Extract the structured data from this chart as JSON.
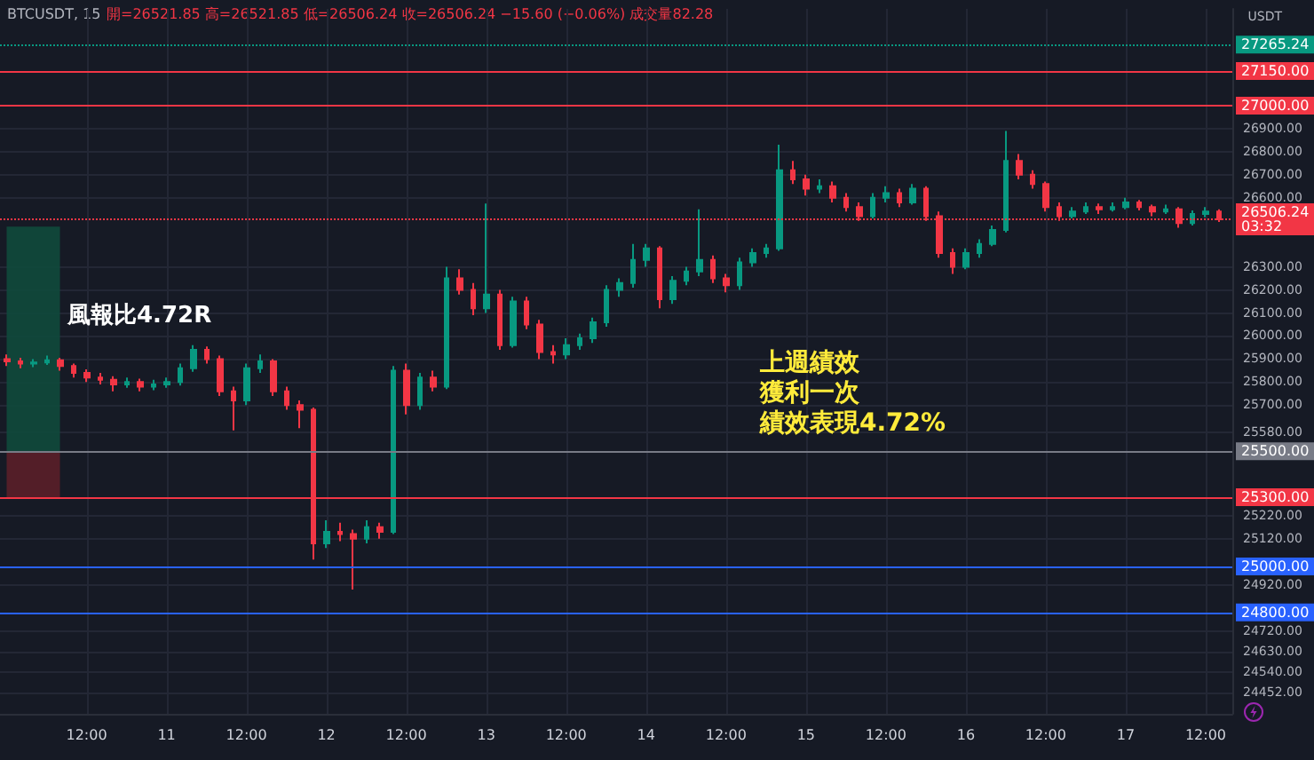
{
  "chart_data": {
    "type": "candlestick",
    "title": "BTCUSDT, 15",
    "subtitle": "開=26521.85 高=26521.85 低=26506.24 收=26506.24 −15.60 (−0.06%) 成交量82.28",
    "ylabel": "USDT",
    "annotations": [
      "風報比4.72R",
      "上週績效",
      "獲利一次",
      "績效表現4.72%"
    ],
    "x": [
      "--09-10T00:00",
      "--09-10T02:00",
      "--09-10T04:00",
      "--09-10T06:00",
      "--09-10T08:00",
      "--09-10T10:00",
      "--09-10T12:00",
      "--09-10T14:00",
      "--09-10T16:00",
      "--09-10T18:00",
      "--09-10T20:00",
      "--09-10T22:00",
      "--09-11T00:00",
      "--09-11T02:00",
      "--09-11T04:00",
      "--09-11T06:00",
      "--09-11T08:00",
      "--09-11T10:00",
      "--09-11T12:00",
      "--09-11T14:00",
      "--09-11T16:00",
      "--09-11T18:00",
      "--09-11T20:00",
      "--09-11T22:00",
      "--09-12T00:00",
      "--09-12T02:00",
      "--09-12T04:00",
      "--09-12T06:00",
      "--09-12T08:00",
      "--09-12T10:00",
      "--09-12T12:00",
      "--09-12T14:00",
      "--09-12T16:00",
      "--09-12T18:00",
      "--09-12T20:00",
      "--09-12T22:00",
      "--09-13T00:00",
      "--09-13T02:00",
      "--09-13T04:00",
      "--09-13T06:00",
      "--09-13T08:00",
      "--09-13T10:00",
      "--09-13T12:00",
      "--09-13T14:00",
      "--09-13T16:00",
      "--09-13T18:00",
      "--09-13T20:00",
      "--09-13T22:00",
      "--09-14T00:00",
      "--09-14T02:00",
      "--09-14T04:00",
      "--09-14T06:00",
      "--09-14T08:00",
      "--09-14T10:00",
      "--09-14T12:00",
      "--09-14T14:00",
      "--09-14T16:00",
      "--09-14T18:00",
      "--09-14T20:00",
      "--09-14T22:00",
      "--09-15T00:00",
      "--09-15T02:00",
      "--09-15T04:00",
      "--09-15T06:00",
      "--09-15T08:00",
      "--09-15T10:00",
      "--09-15T12:00",
      "--09-15T14:00",
      "--09-15T16:00",
      "--09-15T18:00",
      "--09-15T20:00",
      "--09-15T22:00",
      "--09-16T00:00",
      "--09-16T02:00",
      "--09-16T04:00",
      "--09-16T06:00",
      "--09-16T08:00",
      "--09-16T10:00",
      "--09-16T12:00",
      "--09-16T14:00",
      "--09-16T16:00",
      "--09-16T18:00",
      "--09-16T20:00",
      "--09-16T22:00",
      "--09-17T00:00",
      "--09-17T02:00",
      "--09-17T04:00",
      "--09-17T06:00",
      "--09-17T08:00",
      "--09-17T10:00",
      "--09-17T12:00",
      "--09-17T14:00"
    ],
    "ohlc": [
      [
        25900,
        25920,
        25870,
        25890
      ],
      [
        25890,
        25905,
        25860,
        25880
      ],
      [
        25880,
        25900,
        25865,
        25885
      ],
      [
        25885,
        25915,
        25875,
        25895
      ],
      [
        25895,
        25905,
        25850,
        25870
      ],
      [
        25870,
        25880,
        25820,
        25840
      ],
      [
        25840,
        25855,
        25800,
        25820
      ],
      [
        25820,
        25840,
        25790,
        25810
      ],
      [
        25810,
        25825,
        25760,
        25790
      ],
      [
        25790,
        25820,
        25775,
        25800
      ],
      [
        25800,
        25815,
        25760,
        25780
      ],
      [
        25780,
        25810,
        25765,
        25790
      ],
      [
        25790,
        25820,
        25775,
        25800
      ],
      [
        25800,
        25880,
        25785,
        25860
      ],
      [
        25860,
        25960,
        25845,
        25940
      ],
      [
        25940,
        25955,
        25880,
        25900
      ],
      [
        25900,
        25915,
        25740,
        25760
      ],
      [
        25760,
        25780,
        25590,
        25720
      ],
      [
        25720,
        25880,
        25700,
        25860
      ],
      [
        25860,
        25920,
        25840,
        25890
      ],
      [
        25890,
        25900,
        25740,
        25760
      ],
      [
        25760,
        25780,
        25680,
        25700
      ],
      [
        25700,
        25720,
        25600,
        25680
      ],
      [
        25680,
        25690,
        25030,
        25100
      ],
      [
        25100,
        25200,
        25080,
        25150
      ],
      [
        25150,
        25190,
        25110,
        25140
      ],
      [
        25140,
        25160,
        24900,
        25120
      ],
      [
        25120,
        25200,
        25100,
        25170
      ],
      [
        25170,
        25190,
        25120,
        25150
      ],
      [
        25150,
        25870,
        25140,
        25850
      ],
      [
        25850,
        25880,
        25660,
        25700
      ],
      [
        25700,
        25840,
        25680,
        25820
      ],
      [
        25820,
        25850,
        25760,
        25780
      ],
      [
        25780,
        26300,
        25770,
        26250
      ],
      [
        26250,
        26290,
        26180,
        26200
      ],
      [
        26200,
        26230,
        26090,
        26120
      ],
      [
        26120,
        26575,
        26100,
        26180
      ],
      [
        26180,
        26200,
        25940,
        25960
      ],
      [
        25960,
        26170,
        25950,
        26150
      ],
      [
        26150,
        26170,
        26030,
        26050
      ],
      [
        26050,
        26070,
        25900,
        25930
      ],
      [
        25930,
        25960,
        25880,
        25920
      ],
      [
        25920,
        25990,
        25900,
        25960
      ],
      [
        25960,
        26010,
        25940,
        25990
      ],
      [
        25990,
        26080,
        25970,
        26060
      ],
      [
        26060,
        26220,
        26040,
        26200
      ],
      [
        26200,
        26250,
        26170,
        26230
      ],
      [
        26230,
        26400,
        26210,
        26330
      ],
      [
        26330,
        26400,
        26300,
        26380
      ],
      [
        26380,
        26390,
        26120,
        26160
      ],
      [
        26160,
        26260,
        26140,
        26240
      ],
      [
        26240,
        26300,
        26220,
        26280
      ],
      [
        26280,
        26550,
        26260,
        26330
      ],
      [
        26330,
        26350,
        26230,
        26250
      ],
      [
        26250,
        26270,
        26190,
        26220
      ],
      [
        26220,
        26340,
        26200,
        26320
      ],
      [
        26320,
        26380,
        26300,
        26360
      ],
      [
        26360,
        26400,
        26340,
        26380
      ],
      [
        26380,
        26830,
        26370,
        26720
      ],
      [
        26720,
        26760,
        26660,
        26680
      ],
      [
        26680,
        26700,
        26610,
        26640
      ],
      [
        26640,
        26680,
        26620,
        26650
      ],
      [
        26650,
        26670,
        26580,
        26600
      ],
      [
        26600,
        26620,
        26540,
        26560
      ],
      [
        26560,
        26580,
        26500,
        26520
      ],
      [
        26520,
        26620,
        26510,
        26600
      ],
      [
        26600,
        26650,
        26580,
        26620
      ],
      [
        26620,
        26640,
        26560,
        26580
      ],
      [
        26580,
        26660,
        26570,
        26640
      ],
      [
        26640,
        26650,
        26500,
        26520
      ],
      [
        26520,
        26540,
        26340,
        26360
      ],
      [
        26360,
        26380,
        26270,
        26300
      ],
      [
        26300,
        26380,
        26290,
        26360
      ],
      [
        26360,
        26420,
        26340,
        26400
      ],
      [
        26400,
        26480,
        26390,
        26460
      ],
      [
        26460,
        26890,
        26450,
        26760
      ],
      [
        26760,
        26790,
        26680,
        26700
      ],
      [
        26700,
        26720,
        26640,
        26660
      ],
      [
        26660,
        26670,
        26540,
        26560
      ],
      [
        26560,
        26580,
        26500,
        26520
      ],
      [
        26520,
        26560,
        26510,
        26540
      ],
      [
        26540,
        26580,
        26530,
        26560
      ],
      [
        26560,
        26575,
        26530,
        26550
      ],
      [
        26550,
        26580,
        26540,
        26560
      ],
      [
        26560,
        26600,
        26550,
        26580
      ],
      [
        26580,
        26590,
        26545,
        26560
      ],
      [
        26560,
        26570,
        26520,
        26540
      ],
      [
        26540,
        26570,
        26530,
        26550
      ],
      [
        26550,
        26560,
        26470,
        26490
      ],
      [
        26490,
        26545,
        26480,
        26530
      ],
      [
        26530,
        26560,
        26515,
        26540
      ],
      [
        26540,
        26550,
        26495,
        26506.24
      ]
    ],
    "xlim": [
      "--09-09T23:00",
      "--09-17T16:00"
    ],
    "xticks": [
      {
        "value": "--09-10T12:00",
        "label": "12:00"
      },
      {
        "value": "--09-11",
        "label": "11"
      },
      {
        "value": "--09-11T12:00",
        "label": "12:00"
      },
      {
        "value": "--09-12",
        "label": "12"
      },
      {
        "value": "--09-12T12:00",
        "label": "12:00"
      },
      {
        "value": "--09-13",
        "label": "13"
      },
      {
        "value": "--09-13T12:00",
        "label": "12:00"
      },
      {
        "value": "--09-14",
        "label": "14"
      },
      {
        "value": "--09-14T12:00",
        "label": "12:00"
      },
      {
        "value": "--09-15",
        "label": "15"
      },
      {
        "value": "--09-15T12:00",
        "label": "12:00"
      },
      {
        "value": "--09-16",
        "label": "16"
      },
      {
        "value": "--09-16T12:00",
        "label": "12:00"
      },
      {
        "value": "--09-17",
        "label": "17"
      },
      {
        "value": "--09-17T12:00",
        "label": "12:00"
      }
    ],
    "ylim": [
      24360,
      27420
    ],
    "yticks": [
      {
        "value": 24452,
        "label": "24452.00"
      },
      {
        "value": 24540,
        "label": "24540.00"
      },
      {
        "value": 24630,
        "label": "24630.00"
      },
      {
        "value": 24720,
        "label": "24720.00"
      },
      {
        "value": 24920,
        "label": "24920.00"
      },
      {
        "value": 25120,
        "label": "25120.00"
      },
      {
        "value": 25220,
        "label": "25220.00"
      },
      {
        "value": 25580,
        "label": "25580.00"
      },
      {
        "value": 25700,
        "label": "25700.00"
      },
      {
        "value": 25800,
        "label": "25800.00"
      },
      {
        "value": 25900,
        "label": "25900.00"
      },
      {
        "value": 26000,
        "label": "26000.00"
      },
      {
        "value": 26100,
        "label": "26100.00"
      },
      {
        "value": 26200,
        "label": "26200.00"
      },
      {
        "value": 26300,
        "label": "26300.00"
      },
      {
        "value": 26600,
        "label": "26600.00"
      },
      {
        "value": 26700,
        "label": "26700.00"
      },
      {
        "value": 26800,
        "label": "26800.00"
      },
      {
        "value": 26900,
        "label": "26900.00"
      }
    ],
    "ref_lines": [
      {
        "axis": "y",
        "value": 27265.24,
        "label": "27265.24",
        "color": "#089981",
        "line_style": "dotted"
      },
      {
        "axis": "y",
        "value": 27150,
        "label": "27150.00",
        "color": "#f23645",
        "line_style": "solid"
      },
      {
        "axis": "y",
        "value": 27000,
        "label": "27000.00",
        "color": "#f23645",
        "line_style": "solid"
      },
      {
        "axis": "y",
        "value": 26506.24,
        "label": "26506.24\n03:32",
        "color": "#f23645",
        "line_style": "dotted"
      },
      {
        "axis": "y",
        "value": 25500,
        "label": "25500.00",
        "color": "#787b86",
        "line_style": "solid"
      },
      {
        "axis": "y",
        "value": 25300,
        "label": "25300.00",
        "color": "#f23645",
        "line_style": "solid"
      },
      {
        "axis": "y",
        "value": 25000,
        "label": "25000.00",
        "color": "#2962ff",
        "line_style": "solid"
      },
      {
        "axis": "y",
        "value": 24800,
        "label": "24800.00",
        "color": "#2962ff",
        "line_style": "solid"
      }
    ],
    "bands": [
      {
        "axis": "y",
        "from": 25500,
        "to": 26475,
        "color": "#0f4a3c"
      },
      {
        "axis": "y",
        "from": 25300,
        "to": 25500,
        "color": "#5a1f29"
      }
    ],
    "grid": true
  }
}
